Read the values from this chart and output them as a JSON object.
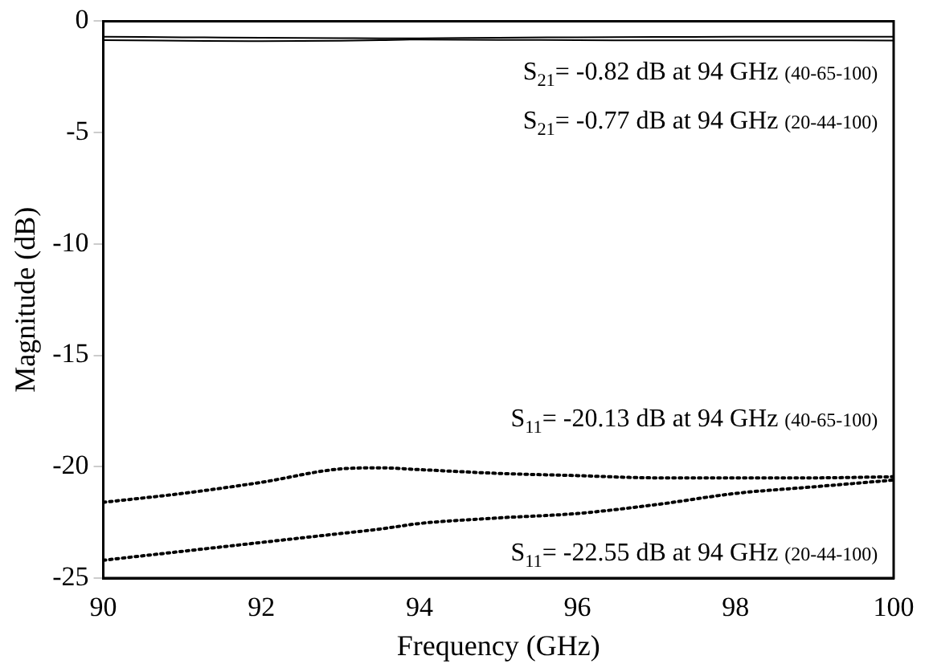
{
  "chart_data": {
    "type": "line",
    "xlabel": "Frequency (GHz)",
    "ylabel": "Magnitude (dB)",
    "xlim": [
      90,
      100
    ],
    "ylim": [
      -25,
      0
    ],
    "xticks": [
      90,
      92,
      94,
      96,
      98,
      100
    ],
    "yticks": [
      -25,
      -20,
      -15,
      -10,
      -5,
      0
    ],
    "grid": false,
    "legend": false,
    "marker": "none",
    "x": [
      90,
      91,
      92,
      93,
      93.5,
      94,
      95,
      96,
      97,
      98,
      99,
      100
    ],
    "series": [
      {
        "color": "#000000",
        "line_style": "solid",
        "values": [
          -0.85,
          -0.88,
          -0.9,
          -0.88,
          -0.85,
          -0.82,
          -0.84,
          -0.85,
          -0.86,
          -0.86,
          -0.86,
          -0.87
        ]
      },
      {
        "color": "#000000",
        "line_style": "solid",
        "values": [
          -0.7,
          -0.72,
          -0.74,
          -0.76,
          -0.77,
          -0.77,
          -0.74,
          -0.72,
          -0.71,
          -0.7,
          -0.7,
          -0.7
        ]
      },
      {
        "color": "#000000",
        "line_style": "dotted",
        "values": [
          -21.6,
          -21.2,
          -20.7,
          -20.1,
          -20.05,
          -20.13,
          -20.3,
          -20.4,
          -20.5,
          -20.5,
          -20.5,
          -20.45
        ]
      },
      {
        "color": "#000000",
        "line_style": "dotted",
        "values": [
          -24.2,
          -23.8,
          -23.4,
          -23.0,
          -22.8,
          -22.55,
          -22.3,
          -22.1,
          -21.7,
          -21.2,
          -20.9,
          -20.6
        ]
      }
    ],
    "annotations": [
      "S$_{21}$= -0.82 dB at 94 GHz (40-65-100)",
      "S$_{21}$= -0.77 dB at 94 GHz (20-44-100)",
      "S$_{11}$= -20.13 dB at 94 GHz (40-65-100)",
      "S$_{11}$= -22.55 dB at 94 GHz (20-44-100)"
    ]
  }
}
